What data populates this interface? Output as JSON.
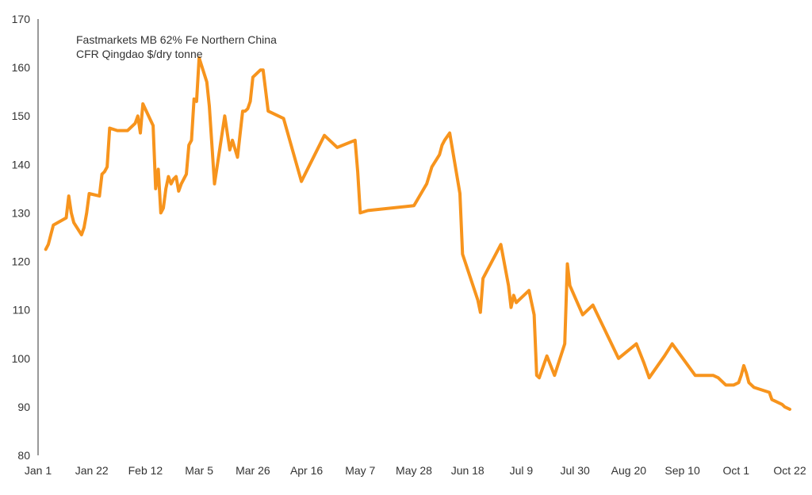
{
  "chart_data": {
    "type": "line",
    "title": "",
    "xlabel": "",
    "ylabel": "",
    "ylim": [
      80,
      170
    ],
    "y_ticks": [
      80,
      90,
      100,
      110,
      120,
      130,
      140,
      150,
      160,
      170
    ],
    "x_tick_labels": [
      "Jan 1",
      "Jan 22",
      "Feb 12",
      "Mar 5",
      "Mar 26",
      "Apr 16",
      "May 7",
      "May 28",
      "Jun 18",
      "Jul 9",
      "Jul 30",
      "Aug 20",
      "Sep 10",
      "Oct 1",
      "Oct 22"
    ],
    "grid": false,
    "legend": {
      "placement": "top-left",
      "lines": [
        "Fastmarkets MB 62% Fe Northern China",
        "CFR Qingdao $/dry tonne"
      ]
    },
    "series": [
      {
        "name": "Fastmarkets MB 62% Fe Northern China CFR Qingdao $/dry tonne",
        "color": "#f7941d",
        "x": [
          "Jan 4",
          "Jan 5",
          "Jan 6",
          "Jan 7",
          "Jan 12",
          "Jan 13",
          "Jan 14",
          "Jan 15",
          "Jan 18",
          "Jan 19",
          "Jan 20",
          "Jan 21",
          "Jan 25",
          "Jan 26",
          "Jan 27",
          "Jan 28",
          "Jan 29",
          "Feb 1",
          "Feb 3",
          "Feb 5",
          "Feb 8",
          "Feb 9",
          "Feb 10",
          "Feb 11",
          "Feb 15",
          "Feb 16",
          "Feb 17",
          "Feb 18",
          "Feb 19",
          "Feb 20",
          "Feb 21",
          "Feb 22",
          "Feb 23",
          "Feb 24",
          "Feb 25",
          "Feb 26",
          "Feb 28",
          "Mar 1",
          "Mar 2",
          "Mar 3",
          "Mar 4",
          "Mar 5",
          "Mar 8",
          "Mar 9",
          "Mar 11",
          "Mar 15",
          "Mar 17",
          "Mar 18",
          "Mar 20",
          "Mar 22",
          "Mar 23",
          "Mar 24",
          "Mar 25",
          "Mar 26",
          "Mar 28",
          "Mar 29",
          "Mar 30",
          "Apr 1",
          "Apr 7",
          "Apr 14",
          "Apr 23",
          "Apr 28",
          "May 5",
          "May 6",
          "May 7",
          "May 10",
          "May 28",
          "Jun 2",
          "Jun 4",
          "Jun 7",
          "Jun 8",
          "Jun 9",
          "Jun 11",
          "Jun 15",
          "Jun 16",
          "Jun 22",
          "Jun 23",
          "Jun 24",
          "Jul 1",
          "Jul 4",
          "Jul 5",
          "Jul 6",
          "Jul 7",
          "Jul 12",
          "Jul 14",
          "Jul 15",
          "Jul 16",
          "Jul 19",
          "Jul 22",
          "Jul 26",
          "Jul 27",
          "Jul 28",
          "Aug 2",
          "Aug 6",
          "Aug 16",
          "Aug 23",
          "Aug 26",
          "Aug 28",
          "Sep 3",
          "Sep 6",
          "Sep 15",
          "Sep 17",
          "Sep 22",
          "Sep 24",
          "Sep 27",
          "Sep 30",
          "Oct 2",
          "Oct 3",
          "Oct 4",
          "Oct 5",
          "Oct 6",
          "Oct 8",
          "Oct 14",
          "Oct 15",
          "Oct 19",
          "Oct 20",
          "Oct 22"
        ],
        "values": [
          122.5,
          123.5,
          125.5,
          127.5,
          129,
          133.5,
          130,
          128,
          125.5,
          127,
          130,
          134,
          133.5,
          138,
          138.5,
          139.5,
          147.5,
          147,
          147,
          147,
          148.5,
          150,
          146.5,
          152.5,
          148,
          135,
          139,
          130,
          131,
          135,
          137.5,
          136,
          137,
          137.5,
          134.5,
          136,
          138,
          144,
          145,
          153.5,
          153,
          162,
          157,
          152,
          136,
          150,
          143,
          145,
          141.5,
          151,
          151,
          151.5,
          153,
          158,
          159,
          159.5,
          159.5,
          151,
          149.5,
          136.5,
          146,
          143.5,
          145,
          138.5,
          130,
          130.5,
          131.5,
          136,
          139.5,
          142,
          144,
          145,
          146.5,
          134,
          121.5,
          112,
          109.5,
          116.5,
          123.5,
          115,
          110.5,
          113,
          111.5,
          114,
          109,
          96.5,
          96,
          100.5,
          96.5,
          103,
          119.5,
          115,
          109,
          111,
          100,
          103,
          99,
          96,
          100.5,
          103,
          96.5,
          96.5,
          96.5,
          96,
          94.5,
          94.5,
          95,
          96.5,
          98.5,
          97,
          95,
          94,
          93,
          91.5,
          90.5,
          90,
          89.5
        ]
      }
    ]
  }
}
